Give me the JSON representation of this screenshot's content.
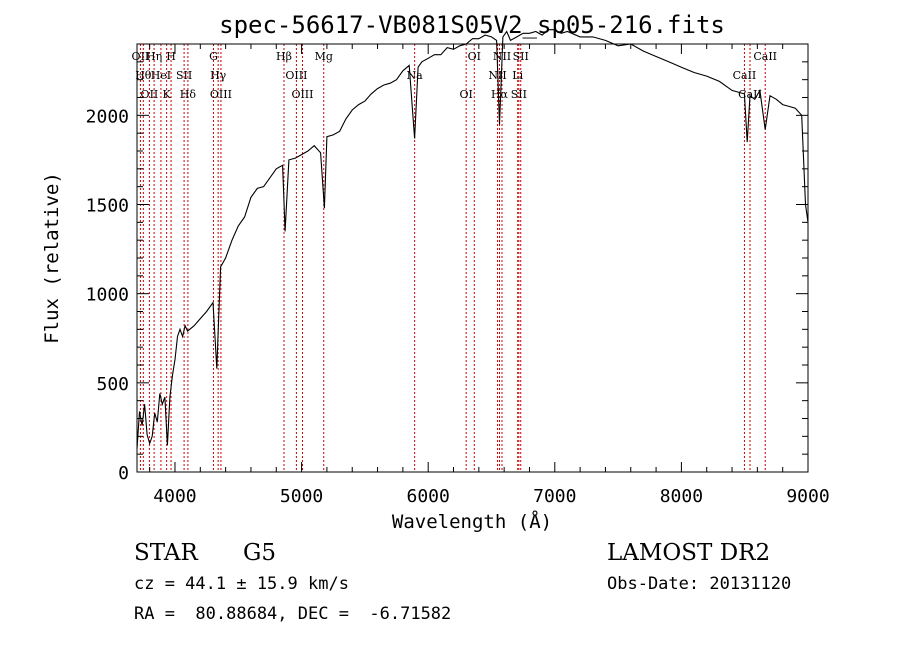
{
  "chart_data": {
    "type": "line",
    "title": "spec-56617-VB081S05V2_sp05-216.fits",
    "xlabel": "Wavelength (Å)",
    "ylabel": "Flux (relative)",
    "xlim": [
      3700,
      9000
    ],
    "ylim": [
      0,
      2400
    ],
    "x_ticks": [
      4000,
      5000,
      6000,
      7000,
      8000,
      9000
    ],
    "y_ticks": [
      0,
      500,
      1000,
      1500,
      2000
    ],
    "grid": false,
    "line_color": "#000000",
    "marker_color": "#cc0000",
    "series": [
      {
        "x": [
          3700,
          3720,
          3740,
          3760,
          3780,
          3800,
          3820,
          3840,
          3860,
          3880,
          3900,
          3920,
          3940,
          3960,
          3980,
          4000,
          4020,
          4040,
          4060,
          4080,
          4100,
          4150,
          4200,
          4250,
          4300,
          4330,
          4360,
          4400,
          4450,
          4500,
          4550,
          4600,
          4650,
          4700,
          4750,
          4800,
          4850,
          4870,
          4900,
          4950,
          5000,
          5050,
          5100,
          5150,
          5180,
          5200,
          5250,
          5300,
          5350,
          5400,
          5450,
          5500,
          5550,
          5600,
          5650,
          5700,
          5750,
          5800,
          5850,
          5893,
          5920,
          5950,
          6000,
          6050,
          6100,
          6150,
          6200,
          6250,
          6300,
          6350,
          6400,
          6450,
          6500,
          6540,
          6563,
          6590,
          6620,
          6650,
          6700,
          6750,
          6800,
          6850,
          6900,
          6950,
          7000,
          7050,
          7100,
          7200,
          7300,
          7400,
          7500,
          7600,
          7700,
          7800,
          7900,
          8000,
          8100,
          8200,
          8300,
          8400,
          8498,
          8520,
          8542,
          8580,
          8620,
          8662,
          8700,
          8750,
          8800,
          8850,
          8900,
          8950,
          8980,
          9000
        ],
        "y": [
          130,
          340,
          260,
          380,
          210,
          160,
          200,
          330,
          280,
          440,
          380,
          420,
          150,
          420,
          540,
          630,
          760,
          800,
          760,
          820,
          790,
          820,
          860,
          900,
          950,
          580,
          1150,
          1200,
          1300,
          1380,
          1430,
          1540,
          1590,
          1600,
          1650,
          1700,
          1720,
          1350,
          1750,
          1760,
          1780,
          1800,
          1830,
          1790,
          1480,
          1880,
          1890,
          1910,
          1980,
          2030,
          2060,
          2080,
          2120,
          2150,
          2170,
          2180,
          2200,
          2250,
          2280,
          1870,
          2270,
          2300,
          2320,
          2340,
          2340,
          2380,
          2370,
          2390,
          2400,
          2430,
          2430,
          2450,
          2440,
          2420,
          1950,
          2440,
          2470,
          2420,
          2440,
          2460,
          2460,
          2470,
          2450,
          2480,
          2480,
          2460,
          2470,
          2440,
          2440,
          2420,
          2390,
          2400,
          2360,
          2330,
          2300,
          2270,
          2240,
          2220,
          2190,
          2140,
          2120,
          1850,
          2110,
          2090,
          2140,
          1920,
          2110,
          2090,
          2060,
          2050,
          2040,
          2000,
          1500,
          1400
        ]
      }
    ],
    "line_markers": [
      {
        "x": 3727,
        "label": "OII"
      },
      {
        "x": 3750,
        "label": "Hθ"
      },
      {
        "x": 3798,
        "label": "OII"
      },
      {
        "x": 3835,
        "label": "Hη"
      },
      {
        "x": 3889,
        "label": "HeI"
      },
      {
        "x": 3934,
        "label": "K"
      },
      {
        "x": 3969,
        "label": "H"
      },
      {
        "x": 4072,
        "label": "SII"
      },
      {
        "x": 4102,
        "label": "Hδ"
      },
      {
        "x": 4304,
        "label": "G"
      },
      {
        "x": 4341,
        "label": "Hγ"
      },
      {
        "x": 4363,
        "label": "OIII"
      },
      {
        "x": 4861,
        "label": "Hβ"
      },
      {
        "x": 4959,
        "label": "OIII"
      },
      {
        "x": 5007,
        "label": "OIII"
      },
      {
        "x": 5175,
        "label": "Mg"
      },
      {
        "x": 5893,
        "label": "Na"
      },
      {
        "x": 6300,
        "label": "OI"
      },
      {
        "x": 6364,
        "label": "OI"
      },
      {
        "x": 6548,
        "label": "NII"
      },
      {
        "x": 6563,
        "label": "Hα"
      },
      {
        "x": 6583,
        "label": "NII"
      },
      {
        "x": 6707,
        "label": "Li"
      },
      {
        "x": 6716,
        "label": "SII"
      },
      {
        "x": 6731,
        "label": "SII"
      },
      {
        "x": 8498,
        "label": "CaII"
      },
      {
        "x": 8542,
        "label": "CaII"
      },
      {
        "x": 8662,
        "label": "CaII"
      }
    ]
  },
  "info": {
    "object_class": "STAR",
    "subclass": "G5",
    "survey": "LAMOST DR2",
    "redshift": "cz = 44.1 ± 15.9 km/s",
    "obs_date": "Obs-Date: 20131120",
    "coords": "RA =  80.88684, DEC =  -6.71582"
  }
}
